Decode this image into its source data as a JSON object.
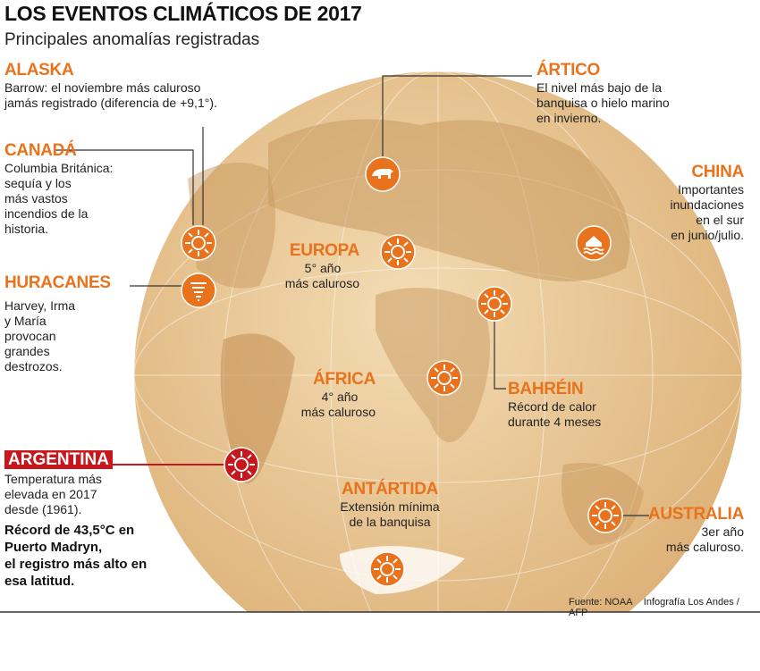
{
  "header": {
    "title": "LOS EVENTOS CLIMÁTICOS DE 2017",
    "subtitle": "Principales anomalías registradas"
  },
  "events": {
    "alaska": {
      "title": "ALASKA",
      "text": [
        "Barrow: el noviembre más caluroso",
        "jamás registrado (diferencia de +9,1°)."
      ],
      "icon": "sun-icon"
    },
    "canada": {
      "title": "CANADÁ",
      "text": [
        "Columbia Británica:",
        "sequía y los",
        "más vastos",
        "incendios de la",
        "historia."
      ],
      "icon": "sun-icon"
    },
    "huracanes": {
      "title": "HURACANES",
      "text": [
        "Harvey, Irma",
        "y María",
        "provocan",
        "grandes",
        "destrozos."
      ],
      "icon": "hurricane-icon"
    },
    "argentina": {
      "title": "ARGENTINA",
      "text": [
        "Temperatura más",
        "elevada en 2017",
        "desde (1961)."
      ],
      "bold": [
        "Récord de 43,5°C en",
        "Puerto Madryn,",
        "el registro más alto en",
        "esa latitud."
      ],
      "icon": "sun-icon",
      "color": "#c8161d"
    },
    "artico": {
      "title": "ÁRTICO",
      "text": [
        "El nivel más bajo de la",
        "banquisa o hielo marino",
        "en invierno."
      ],
      "icon": "polar-bear-icon"
    },
    "china": {
      "title": "CHINA",
      "text": [
        "Importantes",
        "inundaciones",
        "en el sur",
        "en junio/julio."
      ],
      "icon": "flood-icon"
    },
    "europa": {
      "title": "EUROPA",
      "text": [
        "5° año",
        "más caluroso"
      ],
      "icon": "sun-icon"
    },
    "africa": {
      "title": "ÁFRICA",
      "text": [
        "4° año",
        "más caluroso"
      ],
      "icon": "sun-icon"
    },
    "bahrein": {
      "title": "BAHRÉIN",
      "text": [
        "Récord de calor",
        "durante 4 meses"
      ],
      "icon": "sun-icon"
    },
    "antartida": {
      "title": "ANTÁRTIDA",
      "text": [
        "Extensión mínima",
        "de la banquisa"
      ],
      "icon": "sun-icon"
    },
    "australia": {
      "title": "AUSTRALIA",
      "text": [
        "3er año",
        "más caluroso."
      ],
      "icon": "sun-icon"
    }
  },
  "footer": {
    "source": "Fuente: NOAA",
    "credit": "Infografía Los Andes / AFP"
  },
  "colors": {
    "accent": "#e8731c",
    "argentina": "#c8161d",
    "globe": "#e9c48e"
  }
}
